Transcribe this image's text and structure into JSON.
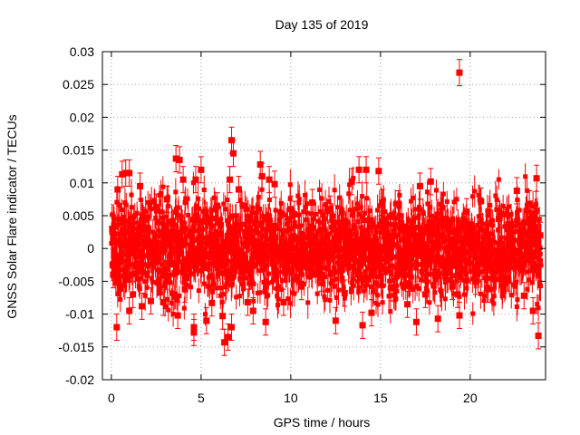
{
  "chart_data": {
    "type": "scatter",
    "title": "Day 135 of 2019",
    "xlabel": "GPS time / hours",
    "ylabel": "GNSS Solar Flare indicator / TECUs",
    "xlim": [
      -0.5,
      24.2
    ],
    "ylim": [
      -0.02,
      0.03
    ],
    "xticks": [
      0,
      5,
      10,
      15,
      20
    ],
    "xtick_labels": [
      "0",
      "5",
      "10",
      "15",
      "20"
    ],
    "yticks": [
      -0.02,
      -0.015,
      -0.01,
      -0.005,
      0,
      0.005,
      0.01,
      0.015,
      0.02,
      0.025,
      0.03
    ],
    "ytick_labels": [
      "-0.02",
      "-0.015",
      "-0.01",
      "-0.005",
      "0",
      "0.005",
      "0.01",
      "0.015",
      "0.02",
      "0.025",
      "0.03"
    ],
    "grid": true,
    "marker_color": "#ff0000",
    "series": [
      {
        "name": "indicator",
        "error_bar": 0.002,
        "points": [
          [
            0.05,
            0.003
          ],
          [
            0.1,
            -0.004
          ],
          [
            0.3,
            -0.012
          ],
          [
            0.35,
            0.009
          ],
          [
            0.6,
            0.0113
          ],
          [
            0.8,
            0.0115
          ],
          [
            1.0,
            0.0115
          ],
          [
            1.0,
            -0.0095
          ],
          [
            1.2,
            -0.007
          ],
          [
            1.6,
            0.0095
          ],
          [
            1.7,
            -0.0088
          ],
          [
            2.2,
            -0.008
          ],
          [
            2.5,
            0.0063
          ],
          [
            2.9,
            -0.0082
          ],
          [
            3.1,
            0.0075
          ],
          [
            3.6,
            0.0137
          ],
          [
            3.7,
            -0.0102
          ],
          [
            3.8,
            0.0135
          ],
          [
            4.0,
            0.0105
          ],
          [
            4.1,
            -0.0062
          ],
          [
            4.6,
            -0.0128
          ],
          [
            4.6,
            -0.012
          ],
          [
            4.7,
            0.0105
          ],
          [
            5.0,
            0.012
          ],
          [
            5.3,
            -0.011
          ],
          [
            5.6,
            -0.0083
          ],
          [
            5.9,
            0.0065
          ],
          [
            6.2,
            -0.0103
          ],
          [
            6.3,
            -0.0143
          ],
          [
            6.5,
            -0.0135
          ],
          [
            6.6,
            0.0105
          ],
          [
            6.7,
            0.0165
          ],
          [
            6.8,
            0.0145
          ],
          [
            6.7,
            -0.012
          ],
          [
            7.1,
            0.009
          ],
          [
            7.3,
            -0.0035
          ],
          [
            7.6,
            -0.0082
          ],
          [
            7.9,
            -0.0095
          ],
          [
            8.3,
            0.0128
          ],
          [
            8.4,
            0.011
          ],
          [
            8.6,
            -0.0112
          ],
          [
            8.8,
            0.0105
          ],
          [
            9.1,
            0.0098
          ],
          [
            9.6,
            -0.0082
          ],
          [
            10.0,
            0.006
          ],
          [
            10.2,
            0.0052
          ],
          [
            10.6,
            -0.0058
          ],
          [
            11.2,
            0.007
          ],
          [
            11.7,
            -0.0045
          ],
          [
            12.2,
            0.006
          ],
          [
            12.5,
            -0.011
          ],
          [
            13.0,
            -0.0068
          ],
          [
            13.4,
            0.0102
          ],
          [
            13.8,
            0.012
          ],
          [
            14.0,
            -0.0117
          ],
          [
            14.2,
            0.012
          ],
          [
            14.5,
            -0.0098
          ],
          [
            14.9,
            0.0118
          ],
          [
            15.1,
            0.007
          ],
          [
            15.6,
            -0.006
          ],
          [
            16.0,
            0.0068
          ],
          [
            16.5,
            -0.0085
          ],
          [
            17.0,
            -0.0112
          ],
          [
            17.2,
            0.0095
          ],
          [
            17.5,
            -0.007
          ],
          [
            17.8,
            0.0102
          ],
          [
            18.2,
            -0.0107
          ],
          [
            18.6,
            0.0045
          ],
          [
            19.0,
            -0.0058
          ],
          [
            19.3,
            -0.007
          ],
          [
            19.4,
            0.0268
          ],
          [
            19.4,
            -0.0102
          ],
          [
            19.8,
            0.0056
          ],
          [
            20.3,
            -0.005
          ],
          [
            20.6,
            0.0072
          ],
          [
            21.0,
            -0.0062
          ],
          [
            21.6,
            0.0045
          ],
          [
            22.1,
            -0.0045
          ],
          [
            22.6,
            0.0088
          ],
          [
            23.0,
            -0.0072
          ],
          [
            23.3,
            0.0068
          ],
          [
            23.5,
            -0.0095
          ],
          [
            23.7,
            0.0107
          ],
          [
            23.8,
            -0.0133
          ],
          [
            23.9,
            0.002
          ]
        ]
      }
    ]
  }
}
